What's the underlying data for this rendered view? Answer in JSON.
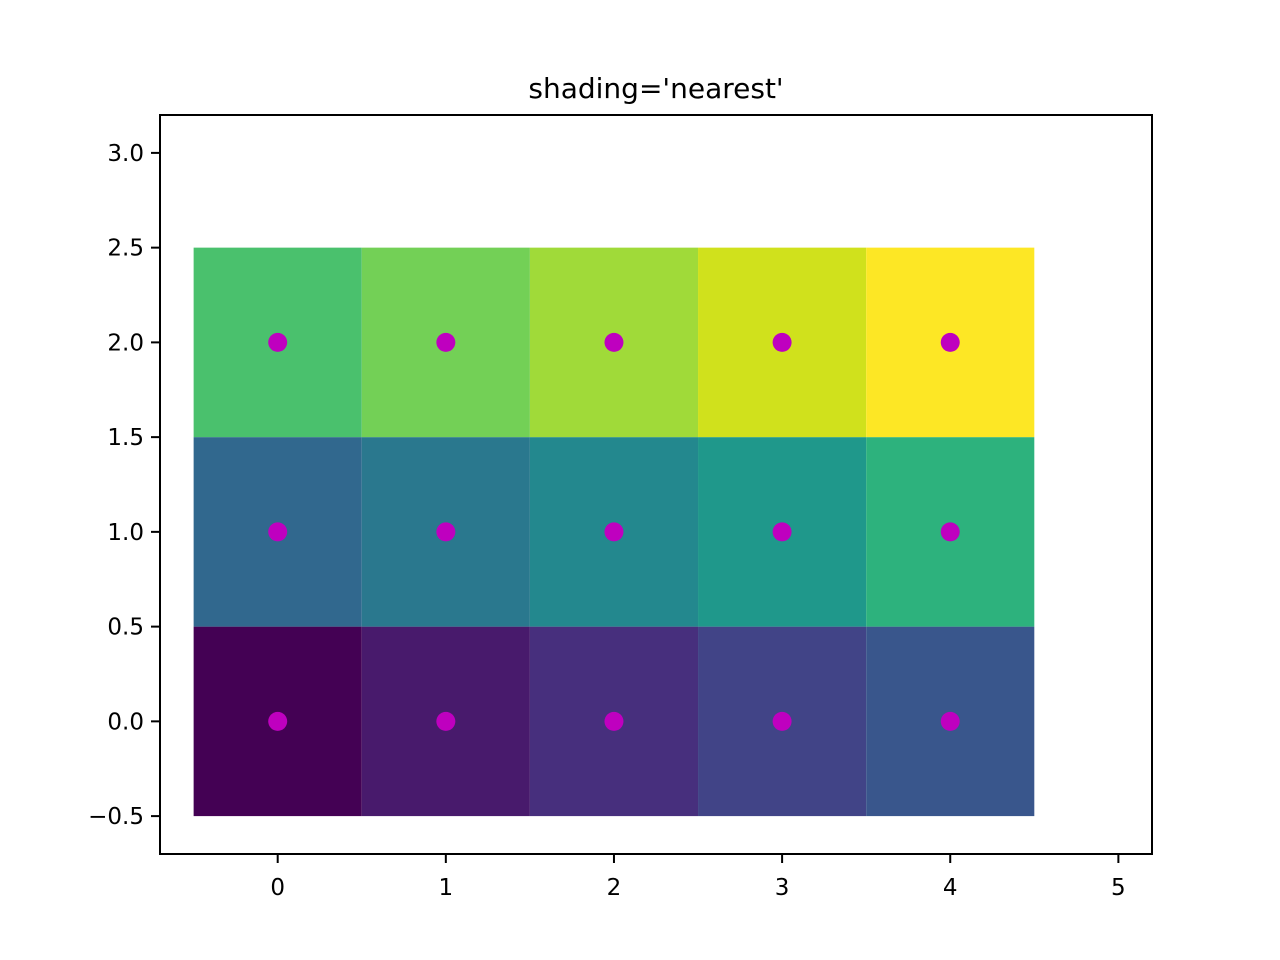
{
  "chart_data": {
    "type": "heatmap",
    "title": "shading='nearest'",
    "xlabel": "",
    "ylabel": "",
    "colormap": "viridis",
    "xlim": [
      -0.7,
      5.2
    ],
    "ylim": [
      -0.7,
      3.2
    ],
    "x": [
      0,
      1,
      2,
      3,
      4
    ],
    "y": [
      0,
      1,
      2
    ],
    "z": [
      [
        0,
        1,
        2,
        3,
        4
      ],
      [
        5,
        6,
        7,
        8,
        9
      ],
      [
        10,
        11,
        12,
        13,
        14
      ]
    ],
    "cell_colors": [
      [
        "#440154",
        "#481a6c",
        "#472f7d",
        "#414487",
        "#39568c"
      ],
      [
        "#31688e",
        "#2a788e",
        "#23888e",
        "#1f988b",
        "#2db27d"
      ],
      [
        "#4ac16d",
        "#73d056",
        "#a0da39",
        "#d0e11c",
        "#fde725"
      ]
    ],
    "scatter": {
      "color": "#bf00bf",
      "points": [
        [
          0,
          0
        ],
        [
          1,
          0
        ],
        [
          2,
          0
        ],
        [
          3,
          0
        ],
        [
          4,
          0
        ],
        [
          0,
          1
        ],
        [
          1,
          1
        ],
        [
          2,
          1
        ],
        [
          3,
          1
        ],
        [
          4,
          1
        ],
        [
          0,
          2
        ],
        [
          1,
          2
        ],
        [
          2,
          2
        ],
        [
          3,
          2
        ],
        [
          4,
          2
        ]
      ]
    },
    "xticks": [
      0,
      1,
      2,
      3,
      4,
      5
    ],
    "xtick_labels": [
      "0",
      "1",
      "2",
      "3",
      "4",
      "5"
    ],
    "yticks": [
      -0.5,
      0.0,
      0.5,
      1.0,
      1.5,
      2.0,
      2.5,
      3.0
    ],
    "ytick_labels": [
      "−0.5",
      "0.0",
      "0.5",
      "1.0",
      "1.5",
      "2.0",
      "2.5",
      "3.0"
    ],
    "grid": false,
    "legend": null
  }
}
